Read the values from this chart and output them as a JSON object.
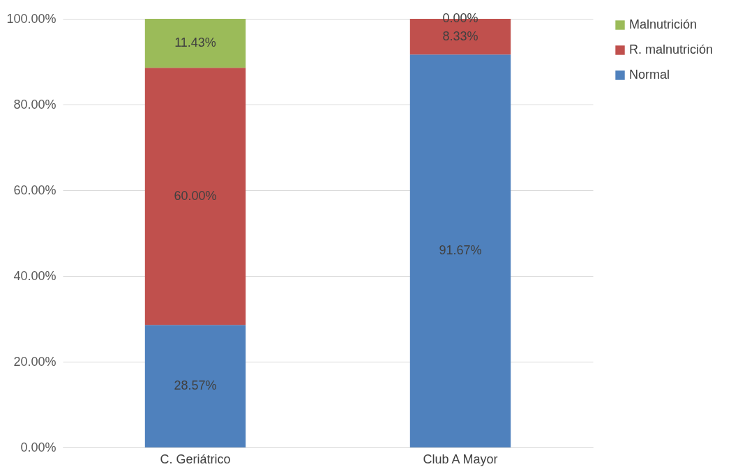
{
  "chart_data": {
    "type": "bar",
    "stacked": true,
    "categories": [
      "C. Geriátrico",
      "Club A Mayor"
    ],
    "series": [
      {
        "name": "Normal",
        "color": "#4f81bd",
        "values": [
          28.57,
          91.67
        ],
        "value_labels": [
          "28.57%",
          "91.67%"
        ]
      },
      {
        "name": "R. malnutrición",
        "color": "#c0504d",
        "values": [
          60.0,
          8.33
        ],
        "value_labels": [
          "60.00%",
          "8.33%"
        ]
      },
      {
        "name": "Malnutrición",
        "color": "#9bbb59",
        "values": [
          11.43,
          0.0
        ],
        "value_labels": [
          "11.43%",
          "0.00%"
        ]
      }
    ],
    "ylim": [
      0,
      100
    ],
    "yticks": [
      {
        "value": 0,
        "label": "0.00%"
      },
      {
        "value": 20,
        "label": "20.00%"
      },
      {
        "value": 40,
        "label": "40.00%"
      },
      {
        "value": 60,
        "label": "60.00%"
      },
      {
        "value": 80,
        "label": "80.00%"
      },
      {
        "value": 100,
        "label": "100.00%"
      }
    ],
    "grid": "y",
    "legend": "right"
  }
}
